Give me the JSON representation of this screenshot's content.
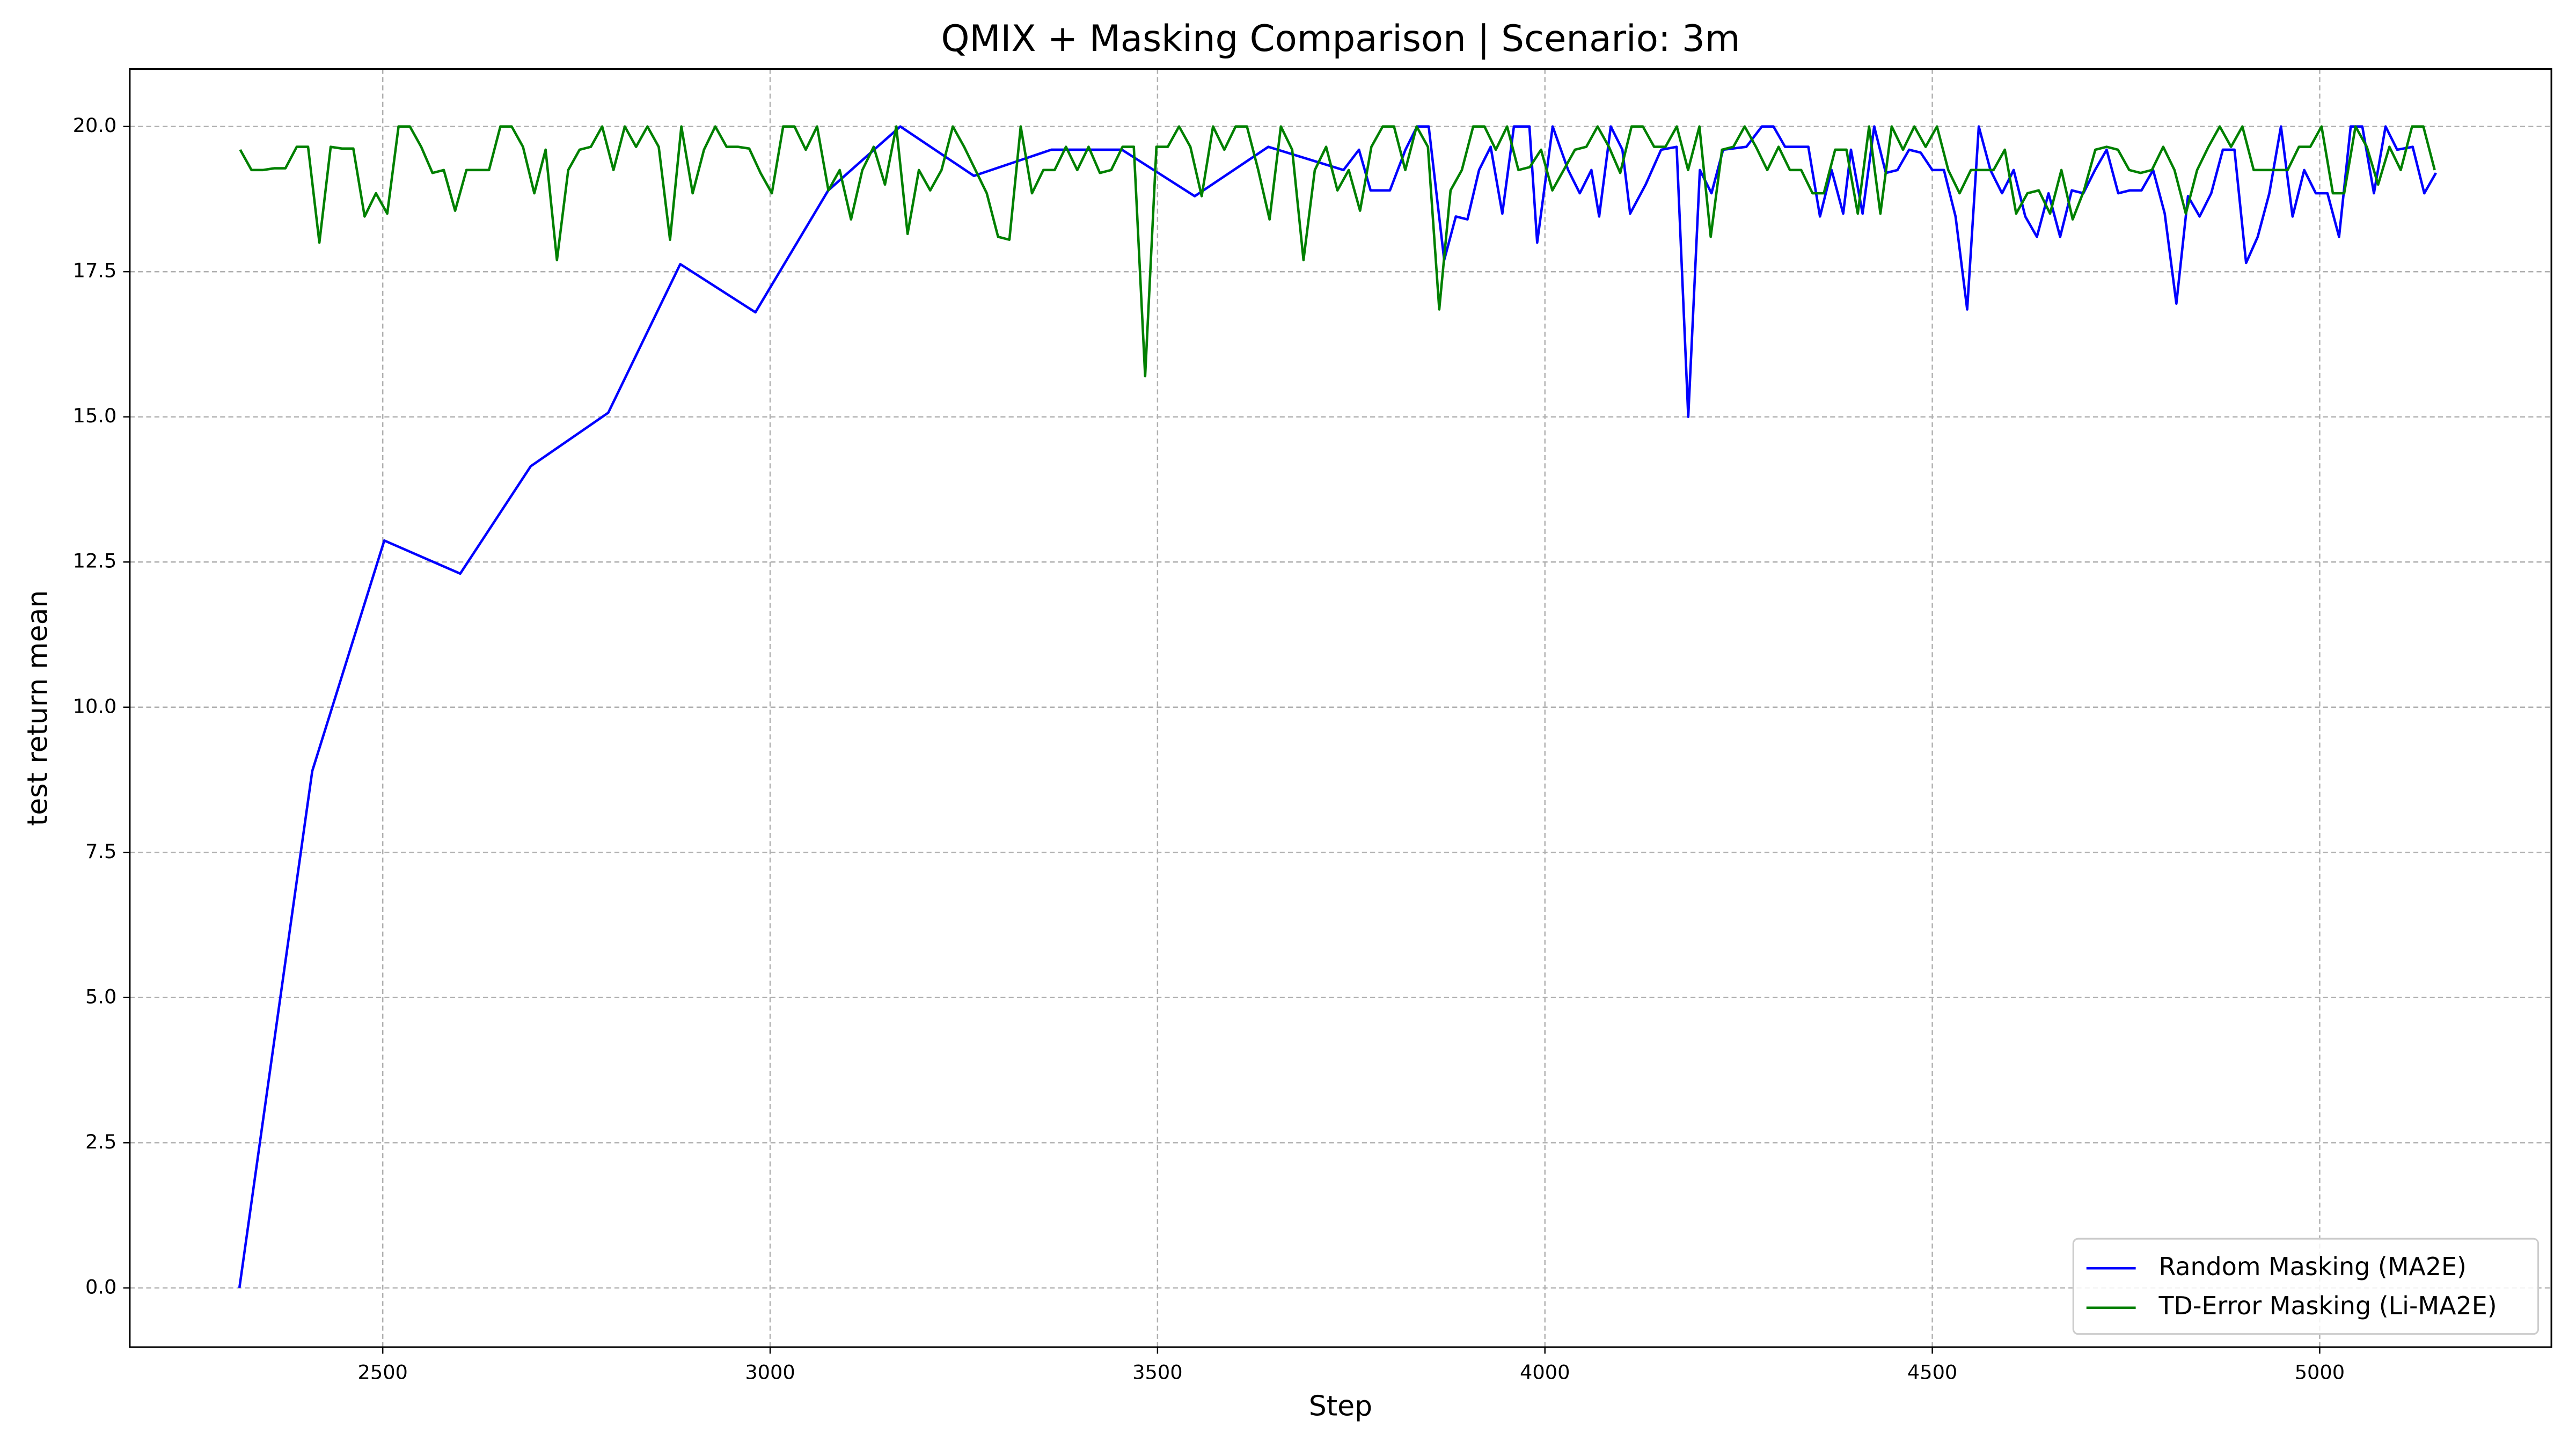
{
  "chart_data": {
    "type": "line",
    "title": "QMIX + Masking Comparison | Scenario: 3m",
    "x_label": "Step",
    "y_label": "test return mean",
    "xlim": [
      2173.5,
      5299
    ],
    "ylim": [
      -1.02,
      20.99
    ],
    "xticks": [
      2500,
      3000,
      3500,
      4000,
      4500,
      5000
    ],
    "yticks": [
      {
        "value": 0,
        "label": "0.0"
      },
      2.5,
      {
        "value": 5,
        "label": "5.0"
      },
      7.5,
      {
        "value": 10,
        "label": "10.0"
      },
      12.5,
      {
        "value": 15,
        "label": "15.0"
      },
      17.5,
      {
        "value": 20,
        "label": "20.0"
      }
    ],
    "grid": true,
    "legend": "lower right",
    "series": [
      {
        "name": "Random Masking (MA2E)",
        "color": "#0000ff",
        "x": [
          2315,
          2409,
          2502,
          2600,
          2691,
          2791,
          2884,
          2981,
          3075,
          3168,
          3263,
          3363,
          3454,
          3548,
          3643,
          3740,
          3760,
          3775,
          3800,
          3820,
          3835,
          3850,
          3870,
          3885,
          3900,
          3915,
          3930,
          3945,
          3960,
          3980,
          3990,
          4010,
          4030,
          4045,
          4060,
          4070,
          4085,
          4100,
          4110,
          4130,
          4150,
          4170,
          4185,
          4200,
          4215,
          4230,
          4260,
          4280,
          4295,
          4310,
          4340,
          4355,
          4370,
          4385,
          4395,
          4410,
          4425,
          4440,
          4455,
          4470,
          4485,
          4500,
          4515,
          4530,
          4545,
          4560,
          4575,
          4590,
          4605,
          4620,
          4635,
          4650,
          4665,
          4680,
          4695,
          4710,
          4725,
          4740,
          4755,
          4770,
          4785,
          4800,
          4815,
          4830,
          4845,
          4860,
          4875,
          4890,
          4905,
          4920,
          4935,
          4950,
          4965,
          4980,
          4995,
          5010,
          5025,
          5040,
          5055,
          5070,
          5085,
          5100,
          5120,
          5135,
          5150
        ],
        "values": [
          0,
          8.9,
          12.87,
          12.3,
          14.15,
          15.07,
          17.63,
          16.8,
          18.9,
          20,
          19.15,
          19.6,
          19.6,
          18.8,
          19.65,
          19.25,
          19.6,
          18.9,
          18.9,
          19.6,
          20,
          20,
          17.7,
          18.45,
          18.4,
          19.25,
          19.65,
          18.5,
          20,
          20,
          18.0,
          20,
          19.25,
          18.85,
          19.25,
          18.45,
          20,
          19.6,
          18.5,
          19.0,
          19.6,
          19.65,
          15.0,
          19.25,
          18.85,
          19.6,
          19.65,
          20,
          20,
          19.65,
          19.65,
          18.45,
          19.25,
          18.5,
          19.6,
          18.5,
          20,
          19.2,
          19.25,
          19.6,
          19.55,
          19.25,
          19.25,
          18.45,
          16.85,
          20,
          19.25,
          18.85,
          19.25,
          18.45,
          18.1,
          18.85,
          18.1,
          18.9,
          18.85,
          19.25,
          19.6,
          18.85,
          18.9,
          18.9,
          19.25,
          18.5,
          16.95,
          18.8,
          18.45,
          18.85,
          19.6,
          19.6,
          17.65,
          18.1,
          18.85,
          20,
          18.45,
          19.25,
          18.85,
          18.85,
          18.1,
          20,
          20,
          18.85,
          20,
          19.6,
          19.65,
          18.85,
          19.2
        ]
      },
      {
        "name": "TD-Error Masking (Li-MA2E)",
        "color": "#008000",
        "x": [
          2316,
          2330.6,
          2345.2,
          2359.8,
          2374.4,
          2389,
          2403.6,
          2418.2,
          2432.8,
          2447.4,
          2462,
          2476.6,
          2491.2,
          2505.8,
          2520.4,
          2535,
          2549.6,
          2564.2,
          2578.8,
          2593.4,
          2608,
          2622.6,
          2637.2,
          2651.8,
          2666.4,
          2681,
          2695.6,
          2710.2,
          2724.8,
          2739.4,
          2754,
          2768.6,
          2783.2,
          2797.8,
          2812.4,
          2827,
          2841.6,
          2856.2,
          2870.8,
          2885.4,
          2900,
          2914.6,
          2929.2,
          2943.8,
          2958.4,
          2973,
          2987.6,
          3002.2,
          3016.8,
          3031.4,
          3046,
          3060.6,
          3075.2,
          3089.8,
          3104.4,
          3119,
          3133.6,
          3148.2,
          3162.8,
          3177.4,
          3192,
          3206.6,
          3221.2,
          3235.8,
          3250.4,
          3265,
          3279.6,
          3294.2,
          3308.8,
          3323.4,
          3338,
          3352.6,
          3367.2,
          3381.8,
          3396.4,
          3411,
          3425.6,
          3440.2,
          3454.8,
          3469.4,
          3484,
          3498.6,
          3513.2,
          3527.8,
          3542.4,
          3557,
          3571.6,
          3586.2,
          3600.8,
          3615.4,
          3630,
          3644.6,
          3659.2,
          3673.8,
          3688.4,
          3703,
          3717.6,
          3732.2,
          3746.8,
          3761.4,
          3776,
          3790.6,
          3805.2,
          3819.8,
          3834.4,
          3849,
          3863.6,
          3878.2,
          3892.8,
          3907.4,
          3922,
          3936.6,
          3951.2,
          3965.8,
          3980.4,
          3995,
          4009.6,
          4024.2,
          4038.8,
          4053.4,
          4068,
          4082.6,
          4097.2,
          4111.8,
          4126.4,
          4141,
          4155.6,
          4170.2,
          4184.8,
          4199.4,
          4214,
          4228.6,
          4243.2,
          4257.8,
          4272.4,
          4287,
          4301.6,
          4316.2,
          4330.8,
          4345.4,
          4360,
          4374.6,
          4389.2,
          4403.8,
          4418.4,
          4433,
          4447.6,
          4462.2,
          4476.8,
          4491.4,
          4506,
          4520.6,
          4535.2,
          4549.8,
          4564.4,
          4579,
          4593.6,
          4608.2,
          4622.8,
          4637.4,
          4652,
          4666.6,
          4681.2,
          4695.8,
          4710.4,
          4725,
          4739.6,
          4754.2,
          4768.8,
          4783.4,
          4798,
          4812.6,
          4827.2,
          4841.8,
          4856.4,
          4871,
          4885.6,
          4900.2,
          4914.8,
          4929.4,
          4944,
          4958.6,
          4973.2,
          4987.8,
          5002.4,
          5017,
          5031.6,
          5046.2,
          5060.8,
          5075.4,
          5090,
          5104.6,
          5119.2,
          5133.8,
          5148.4
        ],
        "values": [
          19.6,
          19.25,
          19.25,
          19.28,
          19.28,
          19.65,
          19.65,
          18.0,
          19.65,
          19.62,
          19.62,
          18.45,
          18.85,
          18.5,
          20,
          20,
          19.65,
          19.2,
          19.25,
          18.55,
          19.25,
          19.25,
          19.25,
          20,
          20,
          19.65,
          18.85,
          19.6,
          17.7,
          19.25,
          19.6,
          19.65,
          20,
          19.25,
          20,
          19.65,
          20,
          19.65,
          18.05,
          20,
          18.85,
          19.6,
          20,
          19.65,
          19.65,
          19.62,
          19.2,
          18.85,
          20,
          20,
          19.6,
          20,
          18.9,
          19.25,
          18.4,
          19.25,
          19.65,
          19.0,
          20,
          18.15,
          19.25,
          18.9,
          19.25,
          20,
          19.65,
          19.25,
          18.85,
          18.1,
          18.05,
          20,
          18.85,
          19.25,
          19.25,
          19.65,
          19.25,
          19.65,
          19.2,
          19.25,
          19.65,
          19.65,
          15.7,
          19.65,
          19.65,
          20,
          19.65,
          18.8,
          20,
          19.6,
          20,
          20,
          19.25,
          18.4,
          20,
          19.6,
          17.7,
          19.25,
          19.65,
          18.9,
          19.25,
          18.55,
          19.65,
          20,
          20,
          19.25,
          20,
          19.65,
          16.85,
          18.9,
          19.25,
          20,
          20,
          19.6,
          20,
          19.25,
          19.3,
          19.6,
          18.9,
          19.25,
          19.6,
          19.65,
          20,
          19.65,
          19.2,
          20,
          20,
          19.65,
          19.65,
          20,
          19.25,
          20,
          18.1,
          19.6,
          19.65,
          20,
          19.65,
          19.25,
          19.65,
          19.25,
          19.25,
          18.85,
          18.85,
          19.6,
          19.6,
          18.5,
          20,
          18.5,
          20,
          19.6,
          20,
          19.65,
          20,
          19.25,
          18.85,
          19.25,
          19.25,
          19.25,
          19.6,
          18.5,
          18.85,
          18.9,
          18.5,
          19.25,
          18.4,
          18.9,
          19.6,
          19.65,
          19.6,
          19.25,
          19.2,
          19.25,
          19.65,
          19.25,
          18.5,
          19.25,
          19.65,
          20,
          19.65,
          20,
          19.25,
          19.25,
          19.25,
          19.25,
          19.65,
          19.65,
          20,
          18.85,
          18.85,
          20,
          19.65,
          19.0,
          19.65,
          19.25,
          20,
          20,
          19.25
        ]
      }
    ]
  }
}
